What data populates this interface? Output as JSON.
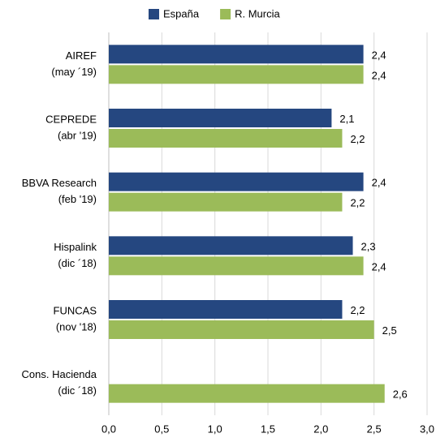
{
  "chart_data": {
    "type": "bar",
    "orientation": "horizontal",
    "categories": [
      [
        "AIREF",
        "(may ´19)"
      ],
      [
        "CEPREDE",
        "(abr '19)"
      ],
      [
        "BBVA Research",
        "(feb '19)"
      ],
      [
        "Hispalink",
        "(dic ´18)"
      ],
      [
        "FUNCAS",
        "(nov '18)"
      ],
      [
        "Cons. Hacienda",
        "(dic ´18)"
      ]
    ],
    "series": [
      {
        "name": "España",
        "color": "#254780",
        "values": [
          2.4,
          2.1,
          2.4,
          2.3,
          2.2,
          null
        ],
        "value_labels": [
          "2,4",
          "2,1",
          "2,4",
          "2,3",
          "2,2",
          null
        ]
      },
      {
        "name": "R. Murcia",
        "color": "#9bbb59",
        "values": [
          2.4,
          2.2,
          2.2,
          2.4,
          2.5,
          2.6
        ],
        "value_labels": [
          "2,4",
          "2,2",
          "2,2",
          "2,4",
          "2,5",
          "2,6"
        ]
      }
    ],
    "xlim": [
      0,
      3
    ],
    "xticks": [
      {
        "value": 0,
        "label": "0,0"
      },
      {
        "value": 0.5,
        "label": "0,5"
      },
      {
        "value": 1,
        "label": "1,0"
      },
      {
        "value": 1.5,
        "label": "1,5"
      },
      {
        "value": 2,
        "label": "2,0"
      },
      {
        "value": 2.5,
        "label": "2,5"
      },
      {
        "value": 3,
        "label": "3,0"
      }
    ],
    "grid": true,
    "legend": "top"
  }
}
